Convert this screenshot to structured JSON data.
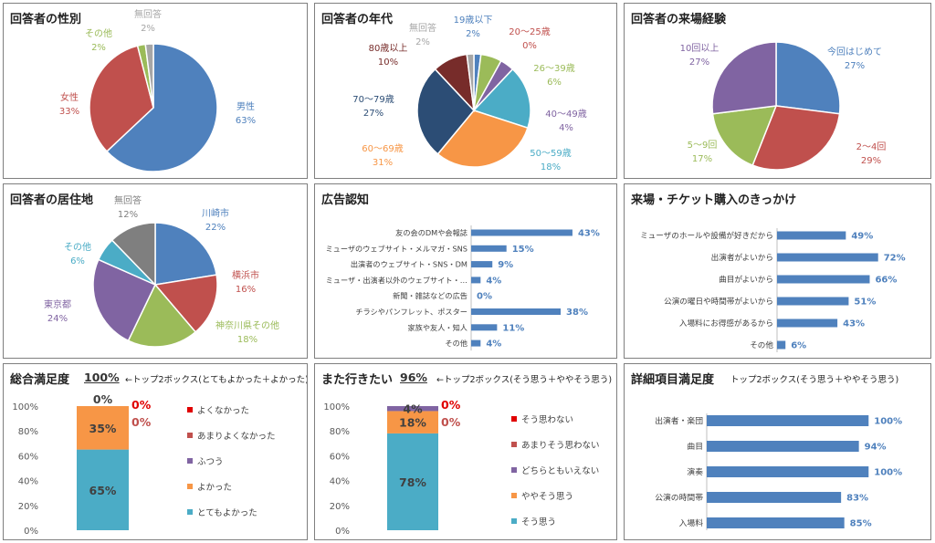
{
  "colors": {
    "blue": "#4f81bd",
    "red": "#c0504d",
    "green": "#9bbb59",
    "purple": "#8064a2",
    "teal": "#4bacc6",
    "orange": "#f79646",
    "navy": "#1f497d",
    "darkred": "#7b2b25",
    "gray": "#7f7f7f",
    "light": "#a6a6a6",
    "brightred": "#e00000"
  },
  "chart_data": [
    {
      "id": "gender",
      "type": "pie",
      "title": "回答者の性別",
      "slices": [
        {
          "name": "男性",
          "pct": "63%",
          "value": 63,
          "color": "#4f81bd"
        },
        {
          "name": "女性",
          "pct": "33%",
          "value": 33,
          "color": "#c0504d"
        },
        {
          "name": "その他",
          "pct": "2%",
          "value": 2,
          "color": "#9bbb59"
        },
        {
          "name": "無回答",
          "pct": "2%",
          "value": 2,
          "color": "#a6a6a6"
        }
      ]
    },
    {
      "id": "age",
      "type": "pie",
      "title": "回答者の年代",
      "slices": [
        {
          "name": "19歳以下",
          "pct": "2%",
          "value": 2,
          "color": "#4f81bd"
        },
        {
          "name": "20～25歳",
          "pct": "0%",
          "value": 0,
          "color": "#c0504d"
        },
        {
          "name": "26～39歳",
          "pct": "6%",
          "value": 6,
          "color": "#9bbb59"
        },
        {
          "name": "40～49歳",
          "pct": "4%",
          "value": 4,
          "color": "#8064a2"
        },
        {
          "name": "50～59歳",
          "pct": "18%",
          "value": 18,
          "color": "#4bacc6"
        },
        {
          "name": "60～69歳",
          "pct": "31%",
          "value": 31,
          "color": "#f79646"
        },
        {
          "name": "70～79歳",
          "pct": "27%",
          "value": 27,
          "color": "#2c4d75"
        },
        {
          "name": "80歳以上",
          "pct": "10%",
          "value": 10,
          "color": "#772c2a"
        },
        {
          "name": "無回答",
          "pct": "2%",
          "value": 2,
          "color": "#a6a6a6"
        }
      ]
    },
    {
      "id": "visits",
      "type": "pie",
      "title": "回答者の来場経験",
      "slices": [
        {
          "name": "今回はじめて",
          "pct": "27%",
          "value": 27,
          "color": "#4f81bd"
        },
        {
          "name": "2～4回",
          "pct": "29%",
          "value": 29,
          "color": "#c0504d"
        },
        {
          "name": "5～9回",
          "pct": "17%",
          "value": 17,
          "color": "#9bbb59"
        },
        {
          "name": "10回以上",
          "pct": "27%",
          "value": 27,
          "color": "#8064a2"
        }
      ]
    },
    {
      "id": "residence",
      "type": "pie",
      "title": "回答者の居住地",
      "slices": [
        {
          "name": "川崎市",
          "pct": "22%",
          "value": 22,
          "color": "#4f81bd"
        },
        {
          "name": "横浜市",
          "pct": "16%",
          "value": 16,
          "color": "#c0504d"
        },
        {
          "name": "神奈川県その他",
          "pct": "18%",
          "value": 18,
          "color": "#9bbb59"
        },
        {
          "name": "東京都",
          "pct": "24%",
          "value": 24,
          "color": "#8064a2"
        },
        {
          "name": "その他",
          "pct": "6%",
          "value": 6,
          "color": "#4bacc6"
        },
        {
          "name": "無回答",
          "pct": "12%",
          "value": 12,
          "color": "#7f7f7f"
        }
      ]
    },
    {
      "id": "ads",
      "type": "bar",
      "orientation": "horizontal",
      "title": "広告認知",
      "categories": [
        "友の会のDMや会報誌",
        "ミューザのウェブサイト・メルマガ・SNS",
        "出演者のウェブサイト・SNS・DM",
        "ミューザ・出演者以外のウェブサイト・…",
        "新聞・雑誌などの広告",
        "チラシやパンフレット、ポスター",
        "家族や友人・知人",
        "その他"
      ],
      "values": [
        43,
        15,
        9,
        4,
        0,
        38,
        11,
        4
      ],
      "labels": [
        "43%",
        "15%",
        "9%",
        "4%",
        "0%",
        "38%",
        "11%",
        "4%"
      ],
      "xlim": [
        0,
        50
      ]
    },
    {
      "id": "motive",
      "type": "bar",
      "orientation": "horizontal",
      "title": "来場・チケット購入のきっかけ",
      "categories": [
        "ミューザのホールや設備が好きだから",
        "出演者がよいから",
        "曲目がよいから",
        "公演の曜日や時間帯がよいから",
        "入場料にお得感があるから",
        "その他"
      ],
      "values": [
        49,
        72,
        66,
        51,
        43,
        6
      ],
      "labels": [
        "49%",
        "72%",
        "66%",
        "51%",
        "43%",
        "6%"
      ],
      "xlim": [
        0,
        80
      ]
    },
    {
      "id": "satisfaction",
      "type": "bar",
      "stacked": true,
      "title": "総合満足度",
      "headline": "100%",
      "note": "←トップ2ボックス(とてもよかった＋よかった)",
      "yticks": [
        "0%",
        "20%",
        "40%",
        "60%",
        "80%",
        "100%"
      ],
      "series": [
        {
          "name": "とてもよかった",
          "value": 65,
          "label": "65%",
          "color": "#4bacc6"
        },
        {
          "name": "よかった",
          "value": 35,
          "label": "35%",
          "color": "#f79646"
        },
        {
          "name": "ふつう",
          "value": 0,
          "label": "0%",
          "color": "#8064a2"
        },
        {
          "name": "あまりよくなかった",
          "value": 0,
          "label": "0%",
          "color": "#c0504d"
        },
        {
          "name": "よくなかった",
          "value": 0,
          "label": "0%",
          "color": "#e00000"
        }
      ]
    },
    {
      "id": "revisit",
      "type": "bar",
      "stacked": true,
      "title": "また行きたい",
      "headline": "96%",
      "note": "←トップ2ボックス(そう思う＋ややそう思う)",
      "yticks": [
        "0%",
        "20%",
        "40%",
        "60%",
        "80%",
        "100%"
      ],
      "series": [
        {
          "name": "そう思う",
          "value": 78,
          "label": "78%",
          "color": "#4bacc6"
        },
        {
          "name": "ややそう思う",
          "value": 18,
          "label": "18%",
          "color": "#f79646"
        },
        {
          "name": "どちらともいえない",
          "value": 4,
          "label": "4%",
          "color": "#8064a2"
        },
        {
          "name": "あまりそう思わない",
          "value": 0,
          "label": "0%",
          "color": "#c0504d"
        },
        {
          "name": "そう思わない",
          "value": 0,
          "label": "0%",
          "color": "#e00000"
        }
      ]
    },
    {
      "id": "detail",
      "type": "bar",
      "orientation": "horizontal",
      "title": "詳細項目満足度",
      "note": "トップ2ボックス(そう思う＋ややそう思う)",
      "categories": [
        "出演者・楽団",
        "曲目",
        "演奏",
        "公演の時間帯",
        "入場料"
      ],
      "values": [
        100,
        94,
        100,
        83,
        85
      ],
      "labels": [
        "100%",
        "94%",
        "100%",
        "83%",
        "85%"
      ],
      "xlim": [
        0,
        110
      ]
    }
  ]
}
